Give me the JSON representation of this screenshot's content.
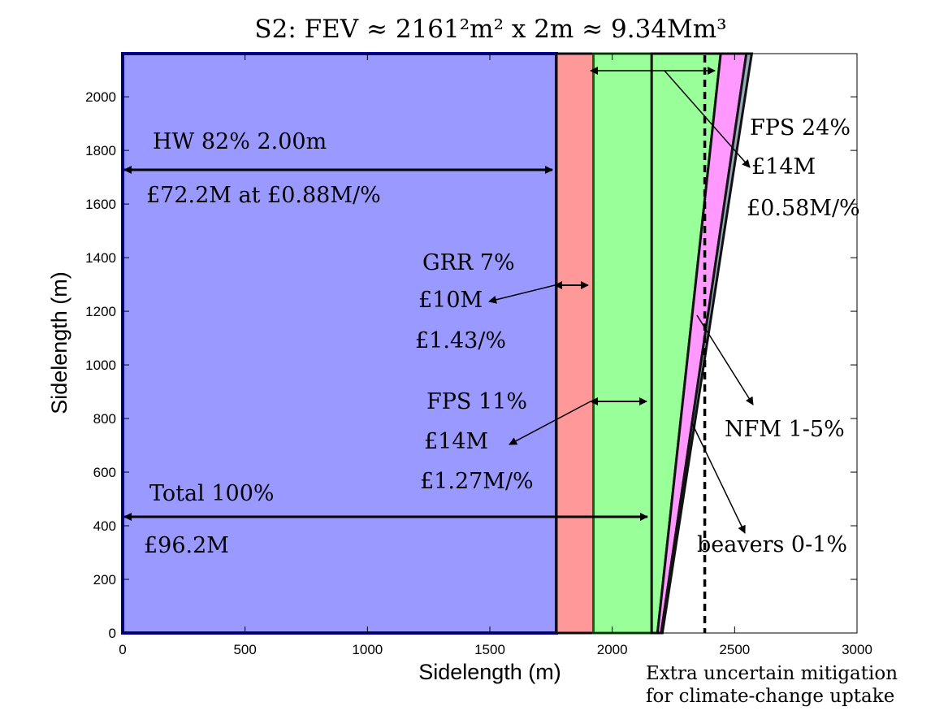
{
  "chart_data": {
    "type": "area",
    "title": "S2: FEV ≈ 2161²m² x 2m ≈ 9.34Mm³",
    "xlabel": "Sidelength (m)",
    "ylabel": "Sidelength (m)",
    "xlim": [
      0,
      3000
    ],
    "ylim": [
      0,
      2161
    ],
    "xticks": [
      0,
      500,
      1000,
      1500,
      2000,
      2500,
      3000
    ],
    "yticks": [
      0,
      200,
      400,
      600,
      800,
      1000,
      1200,
      1400,
      1600,
      1800,
      2000
    ],
    "grid": false,
    "regions": [
      {
        "name": "HW",
        "x_from": 0,
        "x_to": 1772,
        "color": "#9999ff",
        "edge": "#0000aa"
      },
      {
        "name": "GRR",
        "x_from": 1772,
        "x_to": 1923,
        "color": "#ff9999",
        "edge": "#111111"
      },
      {
        "name": "FPS",
        "x_from": 1923,
        "x_to": 2161,
        "color": "#99ff99",
        "edge": "#116611"
      },
      {
        "name": "FPS",
        "bottom": [
          2161,
          2185
        ],
        "top": [
          2161,
          2443
        ],
        "color": "#99ff99",
        "edge": "#111111"
      },
      {
        "name": "NFM",
        "bottom": [
          2185,
          2200
        ],
        "top": [
          2443,
          2548
        ],
        "color": "#ff99ff",
        "edge": "#111111"
      },
      {
        "name": "beavers",
        "bottom": [
          2200,
          2205
        ],
        "top": [
          2548,
          2570
        ],
        "color": "#99aabb",
        "edge": "#111111"
      }
    ],
    "climate_line_x": 2378,
    "annotations": {
      "hw": {
        "label": "HW 82% 2.00m",
        "cost": "£72.2M at £0.88M/%"
      },
      "grr": {
        "label": "GRR 7%",
        "cost": "£10M",
        "rate": "£1.43/%"
      },
      "fps1": {
        "label": "FPS 11%",
        "cost": "£14M",
        "rate": "£1.27M/%"
      },
      "total": {
        "label": "Total 100%",
        "cost": "£96.2M"
      },
      "fps2": {
        "label": "FPS 24%",
        "cost": "£14M",
        "rate": "£0.58M/%"
      },
      "nfm": {
        "label": "NFM 1-5%"
      },
      "beavers": {
        "label": "beavers 0-1%"
      },
      "climate": {
        "line1": "Extra uncertain mitigation",
        "line2": "for climate-change uptake"
      }
    }
  }
}
